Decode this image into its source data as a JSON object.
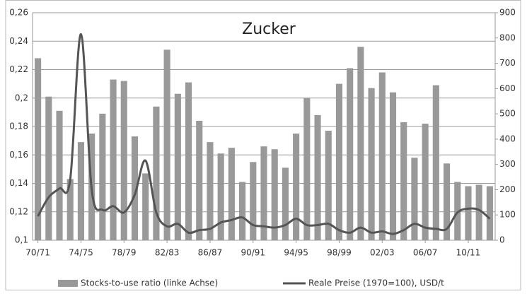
{
  "chart_data": {
    "type": "bar-line",
    "title": "Zucker",
    "categories": [
      "70/71",
      null,
      null,
      null,
      "74/75",
      null,
      null,
      null,
      "78/79",
      null,
      null,
      null,
      "82/83",
      null,
      null,
      null,
      "86/87",
      null,
      null,
      null,
      "90/91",
      null,
      null,
      null,
      "94/95",
      null,
      null,
      null,
      "98/99",
      null,
      null,
      null,
      "02/03",
      null,
      null,
      null,
      "06/07",
      null,
      null,
      null,
      "10/11",
      null,
      null
    ],
    "series": [
      {
        "name": "Stocks-to-use ratio (linke Achse)",
        "color": "#999999",
        "axis": "y",
        "values": [
          0.228,
          0.201,
          0.191,
          0.143,
          0.169,
          0.175,
          0.189,
          0.213,
          0.212,
          0.173,
          0.147,
          0.194,
          0.234,
          0.203,
          0.211,
          0.184,
          0.169,
          0.161,
          0.165,
          0.141,
          0.155,
          0.166,
          0.164,
          0.151,
          0.175,
          0.2,
          0.188,
          0.177,
          0.21,
          0.221,
          0.236,
          0.207,
          0.218,
          0.204,
          0.183,
          0.158,
          0.182,
          0.209,
          0.154,
          0.141,
          0.138,
          0.139,
          0.138
        ]
      },
      {
        "name": "Reale Preise (1970=100), USD/t",
        "color": "#555555",
        "axis": "y2",
        "values": [
          95,
          170,
          205,
          240,
          815,
          200,
          120,
          135,
          110,
          180,
          315,
          110,
          55,
          65,
          30,
          40,
          45,
          70,
          80,
          90,
          60,
          55,
          50,
          60,
          85,
          60,
          60,
          65,
          40,
          30,
          50,
          30,
          35,
          25,
          40,
          65,
          50,
          45,
          45,
          110,
          125,
          120,
          85
        ]
      }
    ],
    "ylim": [
      0.1,
      0.26
    ],
    "yticks": [
      {
        "value": 0.1,
        "label": "0,1"
      },
      {
        "value": 0.12,
        "label": "0,12"
      },
      {
        "value": 0.14,
        "label": "0,14"
      },
      {
        "value": 0.16,
        "label": "0,16"
      },
      {
        "value": 0.18,
        "label": "0,18"
      },
      {
        "value": 0.2,
        "label": "0,2"
      },
      {
        "value": 0.22,
        "label": "0,22"
      },
      {
        "value": 0.24,
        "label": "0,24"
      },
      {
        "value": 0.26,
        "label": "0,26"
      }
    ],
    "y2lim": [
      0,
      900
    ],
    "y2ticks": [
      0,
      100,
      200,
      300,
      400,
      500,
      600,
      700,
      800,
      900
    ],
    "grid": true
  }
}
